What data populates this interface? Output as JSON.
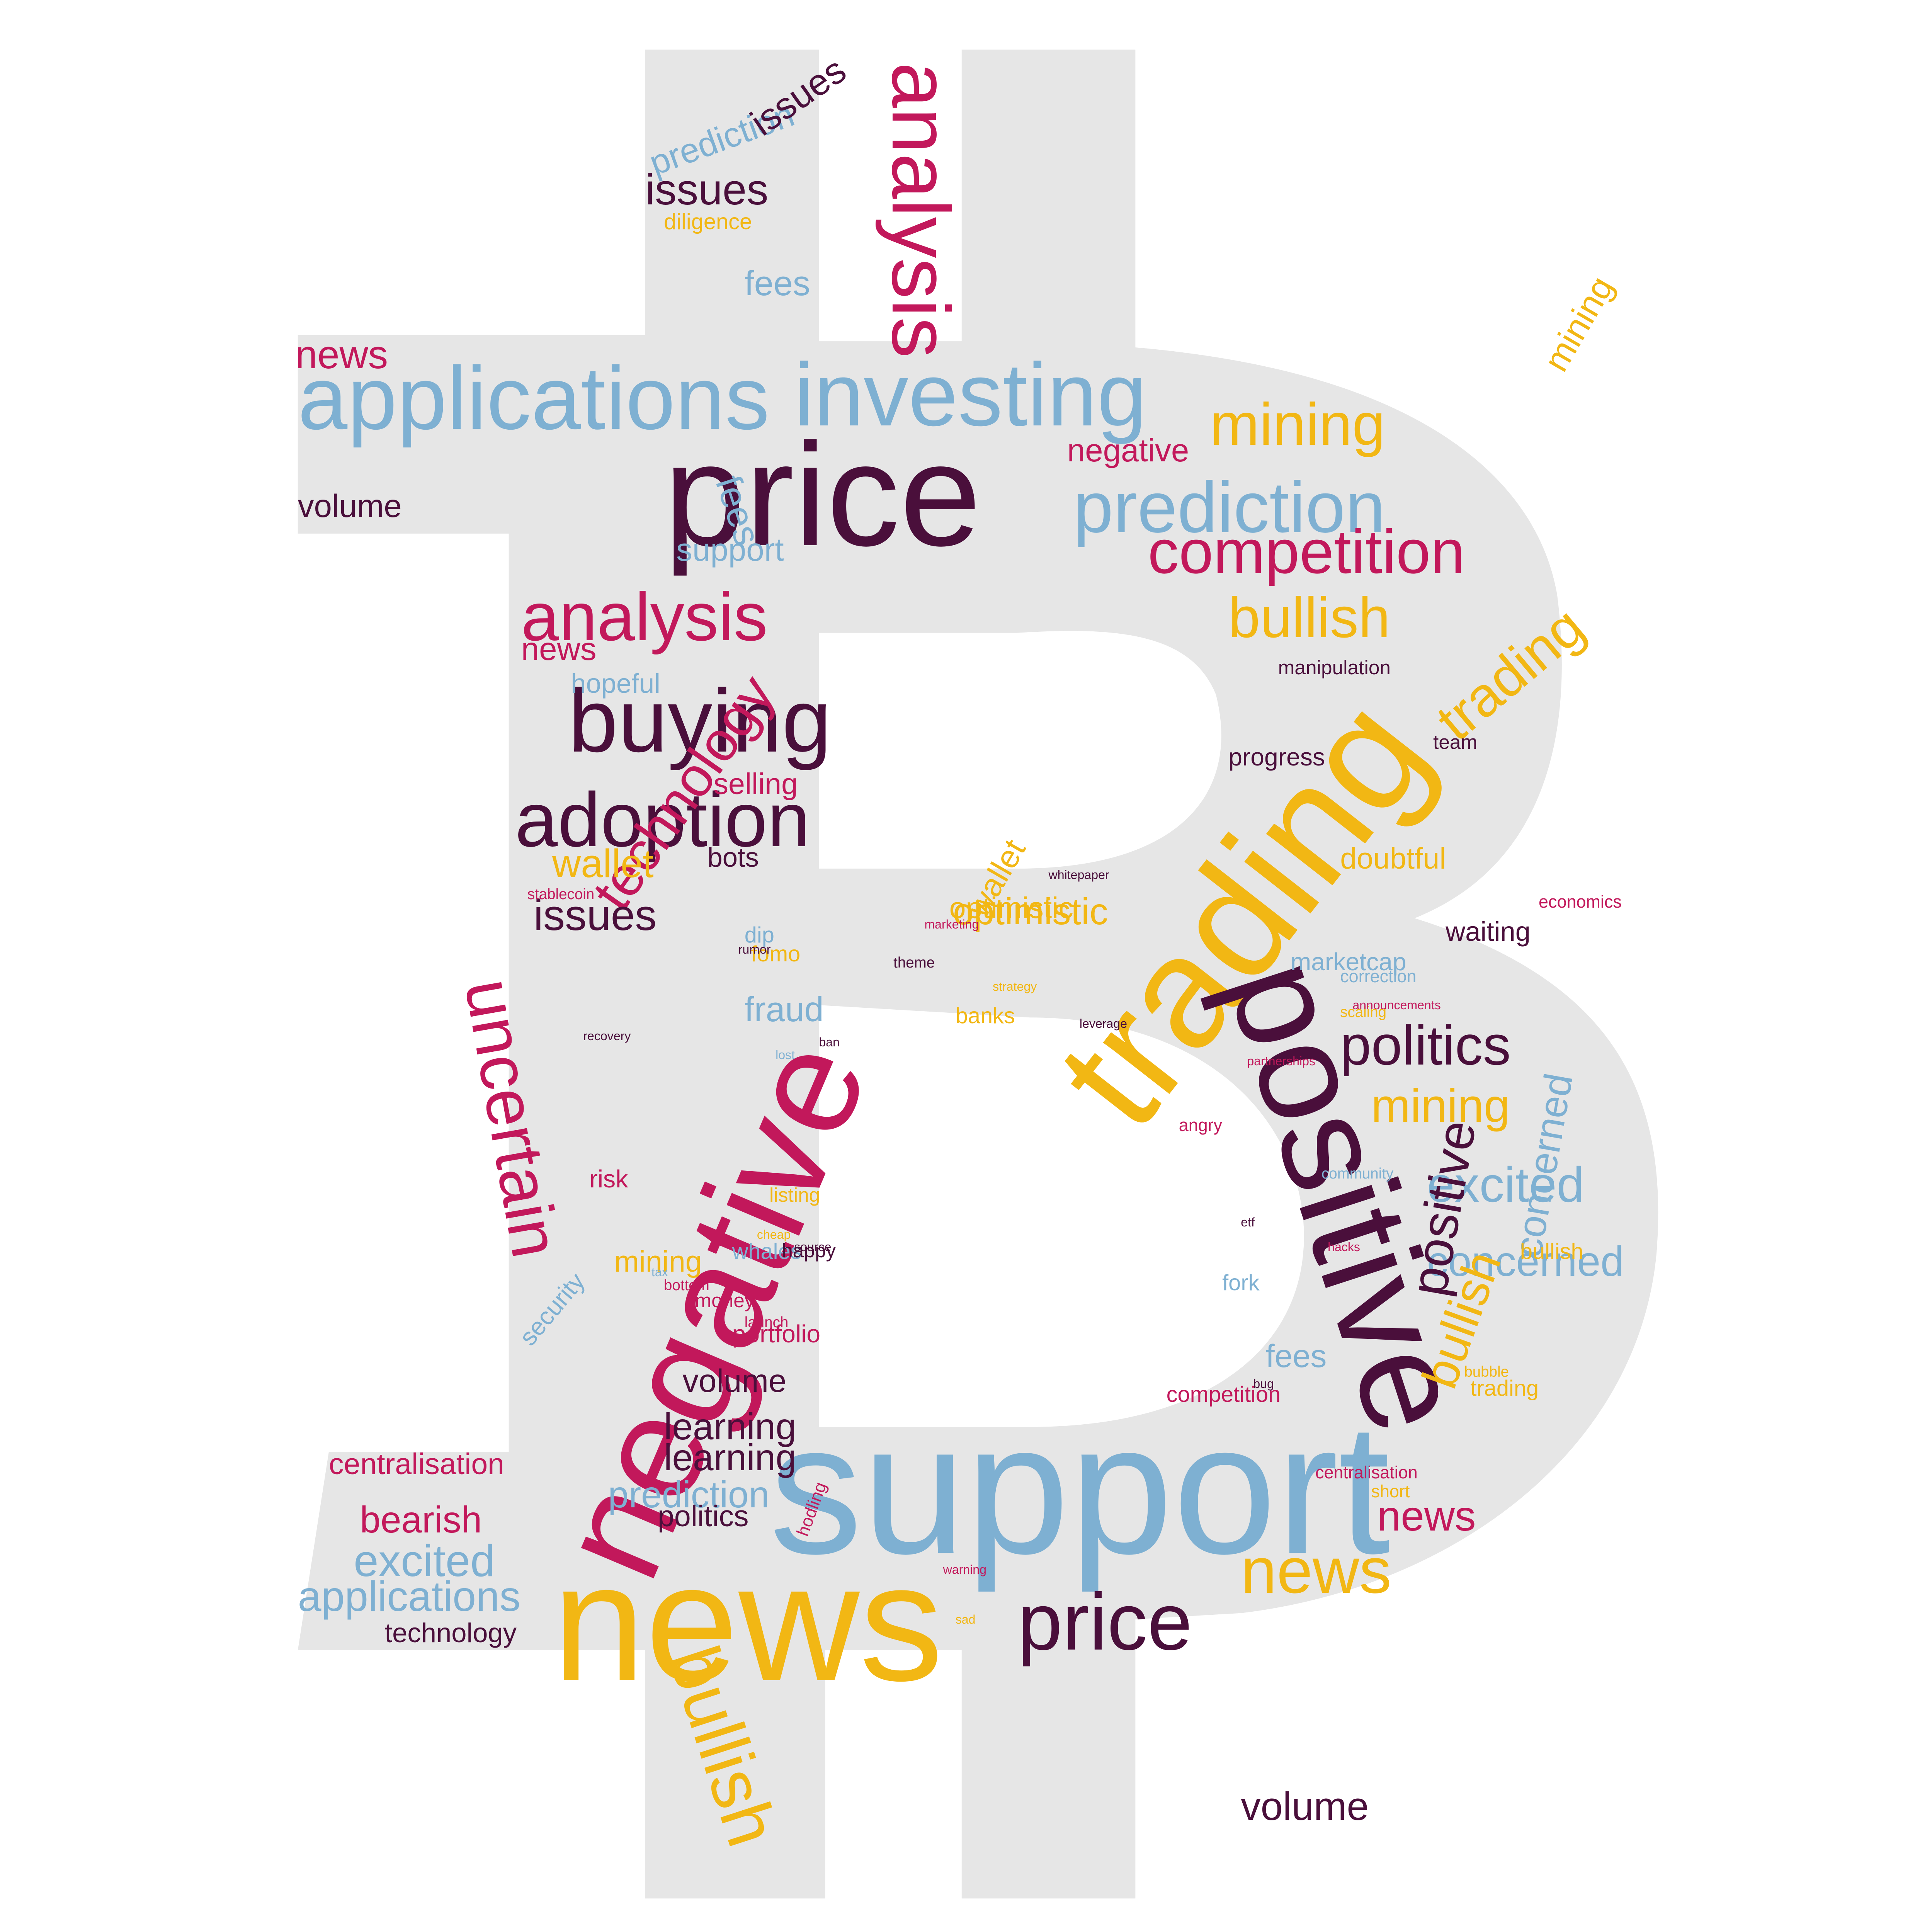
{
  "image": {
    "subject": "bitcoin-symbol-word-cloud",
    "palette": {
      "background": "#ffffff",
      "symbol_fill": "#e6e6e6",
      "crimson": "#c2185b",
      "plum": "#4a0f3b",
      "steel_blue": "#7eb0d2",
      "amber": "#f2b714"
    }
  },
  "words": [
    {
      "t": "price",
      "c": "plum"
    },
    {
      "t": "support",
      "c": "steel_blue"
    },
    {
      "t": "news",
      "c": "amber"
    },
    {
      "t": "negative",
      "c": "crimson"
    },
    {
      "t": "trading",
      "c": "amber"
    },
    {
      "t": "positive",
      "c": "plum"
    },
    {
      "t": "applications",
      "c": "steel_blue"
    },
    {
      "t": "investing",
      "c": "steel_blue"
    },
    {
      "t": "prediction",
      "c": "steel_blue"
    },
    {
      "t": "analysis",
      "c": "crimson"
    },
    {
      "t": "buying",
      "c": "plum"
    },
    {
      "t": "adoption",
      "c": "plum"
    },
    {
      "t": "competition",
      "c": "crimson"
    },
    {
      "t": "trading",
      "c": "amber"
    },
    {
      "t": "news",
      "c": "amber"
    },
    {
      "t": "price",
      "c": "plum"
    },
    {
      "t": "politics",
      "c": "plum"
    },
    {
      "t": "bullish",
      "c": "amber"
    },
    {
      "t": "uncertain",
      "c": "crimson"
    },
    {
      "t": "technology",
      "c": "crimson"
    },
    {
      "t": "analysis",
      "c": "crimson"
    },
    {
      "t": "mining",
      "c": "amber"
    },
    {
      "t": "bullish",
      "c": "amber"
    },
    {
      "t": "excited",
      "c": "steel_blue"
    },
    {
      "t": "concerned",
      "c": "steel_blue"
    },
    {
      "t": "issues",
      "c": "plum"
    },
    {
      "t": "volume",
      "c": "plum"
    },
    {
      "t": "issues",
      "c": "plum"
    },
    {
      "t": "news",
      "c": "crimson"
    },
    {
      "t": "bullish",
      "c": "amber"
    },
    {
      "t": "positive",
      "c": "plum"
    },
    {
      "t": "applications",
      "c": "steel_blue"
    },
    {
      "t": "prediction",
      "c": "steel_blue"
    },
    {
      "t": "excited",
      "c": "steel_blue"
    },
    {
      "t": "mining",
      "c": "amber"
    },
    {
      "t": "concerned",
      "c": "steel_blue"
    },
    {
      "t": "negative",
      "c": "crimson"
    },
    {
      "t": "wallet",
      "c": "amber"
    },
    {
      "t": "optimistic",
      "c": "amber"
    },
    {
      "t": "prediction",
      "c": "steel_blue"
    },
    {
      "t": "issues",
      "c": "plum"
    },
    {
      "t": "volume",
      "c": "plum"
    },
    {
      "t": "fees",
      "c": "steel_blue"
    },
    {
      "t": "bearish",
      "c": "crimson"
    },
    {
      "t": "news",
      "c": "crimson"
    },
    {
      "t": "learning",
      "c": "plum"
    },
    {
      "t": "learning",
      "c": "plum"
    },
    {
      "t": "centralisation",
      "c": "crimson"
    },
    {
      "t": "technology",
      "c": "plum"
    },
    {
      "t": "mining",
      "c": "amber"
    },
    {
      "t": "wallet",
      "c": "amber"
    },
    {
      "t": "politics",
      "c": "plum"
    },
    {
      "t": "volume",
      "c": "plum"
    },
    {
      "t": "support",
      "c": "steel_blue"
    },
    {
      "t": "fees",
      "c": "steel_blue"
    },
    {
      "t": "diligence",
      "c": "amber"
    },
    {
      "t": "selling",
      "c": "crimson"
    },
    {
      "t": "fraud",
      "c": "steel_blue"
    },
    {
      "t": "hopeful",
      "c": "steel_blue"
    },
    {
      "t": "doubtful",
      "c": "amber"
    },
    {
      "t": "optimistic",
      "c": "amber"
    },
    {
      "t": "bots",
      "c": "plum"
    },
    {
      "t": "banks",
      "c": "amber"
    },
    {
      "t": "waiting",
      "c": "plum"
    },
    {
      "t": "mining",
      "c": "amber"
    },
    {
      "t": "bullish",
      "c": "amber"
    },
    {
      "t": "news",
      "c": "crimson"
    },
    {
      "t": "fees",
      "c": "steel_blue"
    },
    {
      "t": "trading",
      "c": "amber"
    },
    {
      "t": "portfolio",
      "c": "crimson"
    },
    {
      "t": "centralisation",
      "c": "crimson"
    },
    {
      "t": "competition",
      "c": "crimson"
    },
    {
      "t": "security",
      "c": "steel_blue"
    },
    {
      "t": "risk",
      "c": "crimson"
    },
    {
      "t": "dip",
      "c": "steel_blue"
    },
    {
      "t": "team",
      "c": "plum"
    },
    {
      "t": "hodling",
      "c": "crimson"
    },
    {
      "t": "fomo",
      "c": "amber"
    },
    {
      "t": "whales",
      "c": "steel_blue"
    },
    {
      "t": "manipulation",
      "c": "plum"
    },
    {
      "t": "happy",
      "c": "plum"
    },
    {
      "t": "angry",
      "c": "crimson"
    },
    {
      "t": "fork",
      "c": "steel_blue"
    },
    {
      "t": "money",
      "c": "crimson"
    },
    {
      "t": "marketcap",
      "c": "steel_blue"
    },
    {
      "t": "listing",
      "c": "amber"
    },
    {
      "t": "short",
      "c": "amber"
    },
    {
      "t": "progress",
      "c": "plum"
    },
    {
      "t": "community",
      "c": "steel_blue"
    },
    {
      "t": "correction",
      "c": "steel_blue"
    },
    {
      "t": "bubble",
      "c": "amber"
    },
    {
      "t": "launch",
      "c": "crimson"
    },
    {
      "t": "scaling",
      "c": "amber"
    },
    {
      "t": "whitepaper",
      "c": "plum"
    },
    {
      "t": "stablecoin",
      "c": "crimson"
    },
    {
      "t": "theme",
      "c": "plum"
    },
    {
      "t": "bottom",
      "c": "crimson"
    },
    {
      "t": "rumor",
      "c": "plum"
    },
    {
      "t": "economics",
      "c": "crimson"
    },
    {
      "t": "recovery",
      "c": "plum"
    },
    {
      "t": "ban",
      "c": "plum"
    },
    {
      "t": "cheap",
      "c": "amber"
    },
    {
      "t": "leverage",
      "c": "plum"
    },
    {
      "t": "strategy",
      "c": "amber"
    },
    {
      "t": "tax",
      "c": "steel_blue"
    },
    {
      "t": "etf",
      "c": "plum"
    },
    {
      "t": "source",
      "c": "plum"
    },
    {
      "t": "bug",
      "c": "plum"
    },
    {
      "t": "warning",
      "c": "crimson"
    },
    {
      "t": "marketing",
      "c": "crimson"
    },
    {
      "t": "partnerships",
      "c": "crimson"
    },
    {
      "t": "announcements",
      "c": "crimson"
    },
    {
      "t": "hacks",
      "c": "crimson"
    },
    {
      "t": "sad",
      "c": "amber"
    },
    {
      "t": "lost",
      "c": "steel_blue"
    }
  ]
}
